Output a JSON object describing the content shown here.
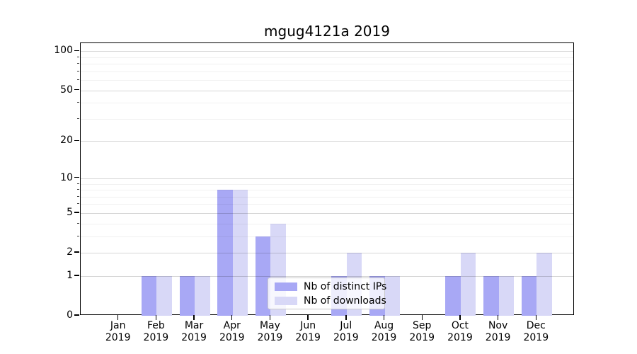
{
  "chart_data": {
    "type": "bar",
    "title": "mgug4121a 2019",
    "categories": [
      "Jan",
      "Feb",
      "Mar",
      "Apr",
      "May",
      "Jun",
      "Jul",
      "Aug",
      "Sep",
      "Oct",
      "Nov",
      "Dec"
    ],
    "x_year": "2019",
    "series": [
      {
        "name": "Nb of distinct IPs",
        "color": "#a8a8f5",
        "values": [
          0,
          1,
          1,
          8,
          3,
          0,
          1,
          1,
          0,
          1,
          1,
          1
        ]
      },
      {
        "name": "Nb of downloads",
        "color": "#d8d8f7",
        "values": [
          0,
          1,
          1,
          8,
          4,
          0,
          2,
          1,
          0,
          2,
          1,
          2
        ]
      }
    ],
    "xlabel": "",
    "ylabel": "",
    "y_axis": {
      "scale": "log1p",
      "tick_values": [
        0,
        1,
        2,
        5,
        10,
        20,
        50,
        100
      ],
      "minor_gridline_values": [
        3,
        4,
        6,
        7,
        8,
        9,
        30,
        40,
        60,
        70,
        80,
        90
      ],
      "ylim": [
        0,
        115
      ]
    },
    "legend": {
      "position": "lower center"
    },
    "grid": true,
    "colors": {
      "major_grid": "rgba(0,0,0,0.16)",
      "minor_grid": "rgba(0,0,0,0.055)",
      "axis": "#000000",
      "background": "#ffffff"
    }
  }
}
